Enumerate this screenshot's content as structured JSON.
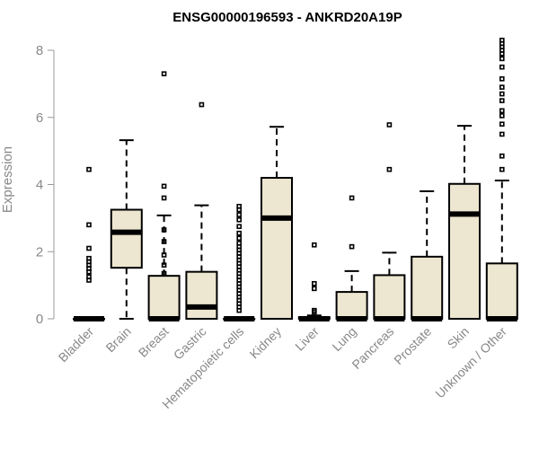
{
  "chart_data": {
    "type": "box",
    "title": "ENSG00000196593 - ANKRD20A19P",
    "xlabel": "",
    "ylabel": "Expression",
    "ylim": [
      0,
      8.3
    ],
    "yticks": [
      0,
      2,
      4,
      6,
      8
    ],
    "categories": [
      "Bladder",
      "Brain",
      "Breast",
      "Gastric",
      "Hematopoietic cells",
      "Kidney",
      "Liver",
      "Lung",
      "Pancreas",
      "Prostate",
      "Skin",
      "Unknown / Other"
    ],
    "box_color": "#ede6d0",
    "series": [
      {
        "name": "Bladder",
        "min": 0,
        "q1": 0,
        "median": 0,
        "q3": 0,
        "max": 0,
        "outliers": [
          4.45,
          2.8,
          2.1,
          1.8,
          1.7,
          1.6,
          1.5,
          1.4,
          1.25,
          1.15
        ]
      },
      {
        "name": "Brain",
        "min": 0,
        "q1": 1.52,
        "median": 2.58,
        "q3": 3.25,
        "max": 5.32,
        "outliers": []
      },
      {
        "name": "Breast",
        "min": 0,
        "q1": 0,
        "median": 0,
        "q3": 1.28,
        "max": 3.08,
        "outliers": [
          7.3,
          3.95,
          3.6,
          2.65,
          2.3,
          1.9,
          1.6,
          1.35
        ]
      },
      {
        "name": "Gastric",
        "min": 0,
        "q1": 0,
        "median": 0.35,
        "q3": 1.4,
        "max": 3.38,
        "outliers": [
          6.38
        ]
      },
      {
        "name": "Hematopoietic cells",
        "min": 0,
        "q1": 0,
        "median": 0,
        "q3": 0,
        "max": 0,
        "outliers": [
          3.35,
          3.25,
          3.1,
          2.95,
          2.75,
          2.55,
          2.4,
          2.25,
          2.15,
          2.05,
          1.95,
          1.85,
          1.75,
          1.65,
          1.55,
          1.45,
          1.35,
          1.25,
          1.15,
          1.05,
          0.95,
          0.85,
          0.75,
          0.65,
          0.55,
          0.45,
          0.35,
          0.25
        ]
      },
      {
        "name": "Kidney",
        "min": 0,
        "q1": 0,
        "median": 3.0,
        "q3": 4.2,
        "max": 5.72,
        "outliers": []
      },
      {
        "name": "Liver",
        "min": 0,
        "q1": 0,
        "median": 0,
        "q3": 0.05,
        "max": 0.1,
        "outliers": [
          2.2,
          1.05,
          0.9,
          0.25,
          0.2
        ]
      },
      {
        "name": "Lung",
        "min": 0,
        "q1": 0,
        "median": 0,
        "q3": 0.8,
        "max": 1.42,
        "outliers": [
          3.6,
          2.15
        ]
      },
      {
        "name": "Pancreas",
        "min": 0,
        "q1": 0,
        "median": 0,
        "q3": 1.3,
        "max": 1.97,
        "outliers": [
          5.78,
          4.45
        ]
      },
      {
        "name": "Prostate",
        "min": 0,
        "q1": 0,
        "median": 0,
        "q3": 1.85,
        "max": 3.8,
        "outliers": []
      },
      {
        "name": "Skin",
        "min": 0,
        "q1": 0,
        "median": 3.12,
        "q3": 4.02,
        "max": 5.75,
        "outliers": []
      },
      {
        "name": "Unknown / Other",
        "min": 0,
        "q1": 0,
        "median": 0,
        "q3": 1.65,
        "max": 4.12,
        "outliers": [
          8.3,
          8.2,
          8.1,
          8.0,
          7.9,
          7.75,
          7.5,
          7.15,
          6.9,
          6.7,
          6.5,
          6.2,
          6.05,
          5.8,
          5.5,
          4.85,
          4.45
        ]
      }
    ]
  }
}
